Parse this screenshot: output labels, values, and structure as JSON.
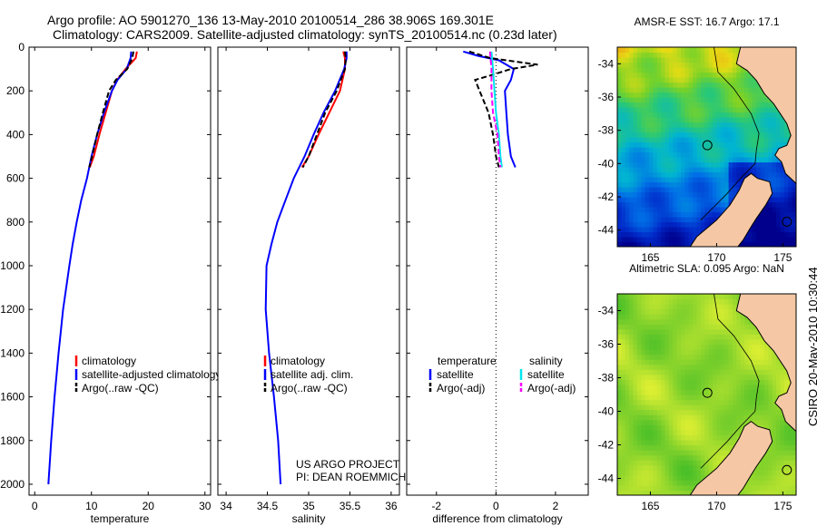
{
  "header": {
    "line1": "Argo profile: AO 5901270_136 13-May-2010 20100514_286 38.906S 169.301E",
    "line2": "Climatology: CARS2009. Satellite-adjusted climatology: synTS_20100514.nc (0.23d later)"
  },
  "colors": {
    "climatology": "#ff0000",
    "satellite": "#0000ff",
    "argo": "#000000",
    "argo_adj_salinity": "#ff00ff",
    "satellite_salinity": "#00e5ee",
    "land": "#f5c7a4"
  },
  "chart_data": [
    {
      "type": "line",
      "panel": "temperature",
      "xlabel": "temperature",
      "ylabel": "",
      "xlim": [
        -1,
        31
      ],
      "ylim": [
        2050,
        0
      ],
      "xticks": [
        0,
        10,
        20,
        30
      ],
      "yticks": [
        0,
        200,
        400,
        600,
        800,
        1000,
        1200,
        1400,
        1600,
        1800,
        2000
      ],
      "legend": [
        "climatology",
        "satellite-adjusted climatology",
        "Argo(..raw -QC)"
      ],
      "series": [
        {
          "name": "climatology",
          "color": "#ff0000",
          "style": "solid",
          "depth": [
            20,
            50,
            100,
            150,
            200,
            300,
            400,
            500,
            550
          ],
          "values": [
            18.0,
            17.8,
            16.0,
            14.5,
            13.6,
            12.5,
            11.4,
            10.4,
            9.7
          ]
        },
        {
          "name": "satellite-adjusted climatology",
          "color": "#0000ff",
          "style": "solid",
          "depth": [
            20,
            50,
            100,
            150,
            200,
            300,
            400,
            500,
            600,
            700,
            800,
            900,
            1000,
            1200,
            1400,
            1600,
            1800,
            2000
          ],
          "values": [
            17.0,
            16.9,
            16.2,
            14.6,
            13.6,
            12.2,
            11.0,
            10.0,
            9.2,
            8.2,
            7.4,
            6.7,
            6.1,
            5.0,
            4.2,
            3.5,
            2.9,
            2.4
          ]
        },
        {
          "name": "Argo(..raw -QC)",
          "color": "#000000",
          "style": "dashed",
          "depth": [
            20,
            50,
            100,
            150,
            200,
            300,
            400,
            500,
            550
          ],
          "values": [
            17.4,
            17.2,
            16.3,
            14.3,
            13.1,
            12.0,
            11.0,
            10.1,
            9.6
          ]
        }
      ]
    },
    {
      "type": "line",
      "panel": "salinity",
      "xlabel": "salinity",
      "ylabel": "",
      "xlim": [
        33.9,
        36.1
      ],
      "ylim": [
        2050,
        0
      ],
      "xticks": [
        34,
        34.5,
        35,
        35.5,
        36
      ],
      "xtick_labels": [
        "34",
        "34.5",
        "35",
        "35.5",
        "36"
      ],
      "yticks": [
        0,
        200,
        400,
        600,
        800,
        1000,
        1200,
        1400,
        1600,
        1800,
        2000
      ],
      "legend": [
        "climatology",
        "satellite adj. clim.",
        "Argo(..raw -QC)"
      ],
      "series": [
        {
          "name": "climatology",
          "color": "#ff0000",
          "style": "solid",
          "depth": [
            20,
            50,
            100,
            200,
            300,
            400,
            500,
            550
          ],
          "values": [
            35.42,
            35.44,
            35.44,
            35.38,
            35.25,
            35.12,
            35.0,
            34.92
          ]
        },
        {
          "name": "satellite adj. clim.",
          "color": "#0000ff",
          "style": "solid",
          "depth": [
            20,
            50,
            100,
            200,
            300,
            400,
            500,
            600,
            700,
            800,
            900,
            1000,
            1200,
            1400,
            1600,
            1800,
            2000
          ],
          "values": [
            35.46,
            35.46,
            35.43,
            35.32,
            35.18,
            35.06,
            34.95,
            34.82,
            34.72,
            34.62,
            34.55,
            34.49,
            34.48,
            34.52,
            34.58,
            34.63,
            34.66
          ]
        },
        {
          "name": "Argo(..raw -QC)",
          "color": "#000000",
          "style": "dashed",
          "depth": [
            20,
            50,
            100,
            200,
            300,
            400,
            500,
            550
          ],
          "values": [
            35.44,
            35.45,
            35.44,
            35.34,
            35.2,
            35.1,
            35.0,
            34.93
          ]
        }
      ],
      "annotations": [
        "US ARGO PROJECT",
        "PI: DEAN ROEMMICH"
      ]
    },
    {
      "type": "line",
      "panel": "difference",
      "xlabel": "difference from climatology",
      "ylabel": "",
      "xlim": [
        -3,
        3.1
      ],
      "ylim": [
        2050,
        0
      ],
      "xticks": [
        -2,
        0,
        2
      ],
      "yticks": [
        0,
        200,
        400,
        600,
        800,
        1000,
        1200,
        1400,
        1600,
        1800,
        2000
      ],
      "legend_headers": [
        "temperature",
        "salinity"
      ],
      "legend": [
        "satellite",
        "Argo(-adj)",
        "satellite",
        "Argo(-adj)"
      ],
      "series": [
        {
          "name": "temperature satellite",
          "color": "#0000ff",
          "style": "solid",
          "depth": [
            20,
            40,
            60,
            100,
            150,
            200,
            300,
            400,
            500,
            550
          ],
          "values": [
            -1.1,
            -0.6,
            0.1,
            0.6,
            0.5,
            0.3,
            0.35,
            0.4,
            0.5,
            0.65
          ]
        },
        {
          "name": "temperature Argo(-adj)",
          "color": "#000000",
          "style": "dashed",
          "depth": [
            20,
            50,
            80,
            100,
            130,
            150,
            200,
            300,
            400,
            500,
            550
          ],
          "values": [
            -0.9,
            -0.2,
            1.4,
            0.5,
            -0.2,
            -0.7,
            -0.55,
            -0.25,
            -0.1,
            0.0,
            0.1
          ]
        },
        {
          "name": "salinity satellite",
          "color": "#00e5ee",
          "style": "solid",
          "depth": [
            20,
            100,
            200,
            300,
            400,
            500,
            550
          ],
          "values": [
            -0.15,
            -0.1,
            -0.05,
            0.0,
            0.1,
            0.15,
            0.2
          ]
        },
        {
          "name": "salinity Argo(-adj)",
          "color": "#ff00ff",
          "style": "dashed",
          "depth": [
            20,
            100,
            200,
            300,
            400,
            500,
            550
          ],
          "values": [
            -0.2,
            -0.15,
            -0.15,
            -0.1,
            0.05,
            0.1,
            0.15
          ]
        }
      ]
    },
    {
      "type": "heatmap",
      "panel": "sst_map",
      "title": "AMSR-E SST: 16.7 Argo: 17.1",
      "xlim": [
        162.5,
        176
      ],
      "ylim": [
        -45,
        -33
      ],
      "xticks": [
        165,
        170,
        175
      ],
      "yticks": [
        -34,
        -36,
        -38,
        -40,
        -42,
        -44
      ],
      "marker": {
        "lon": 169.3,
        "lat": -38.9
      },
      "values_note": "warm (red/orange) north to cold (blue) south"
    },
    {
      "type": "heatmap",
      "panel": "sla_map",
      "title": "Altimetric SLA: 0.095 Argo: NaN",
      "xlim": [
        162.5,
        176
      ],
      "ylim": [
        -45,
        -33
      ],
      "xticks": [
        165,
        170,
        175
      ],
      "yticks": [
        -34,
        -36,
        -38,
        -40,
        -42,
        -44
      ],
      "marker": {
        "lon": 169.3,
        "lat": -38.9
      }
    }
  ],
  "watermark": "CSIRO 20-May-2010 10:30:44"
}
